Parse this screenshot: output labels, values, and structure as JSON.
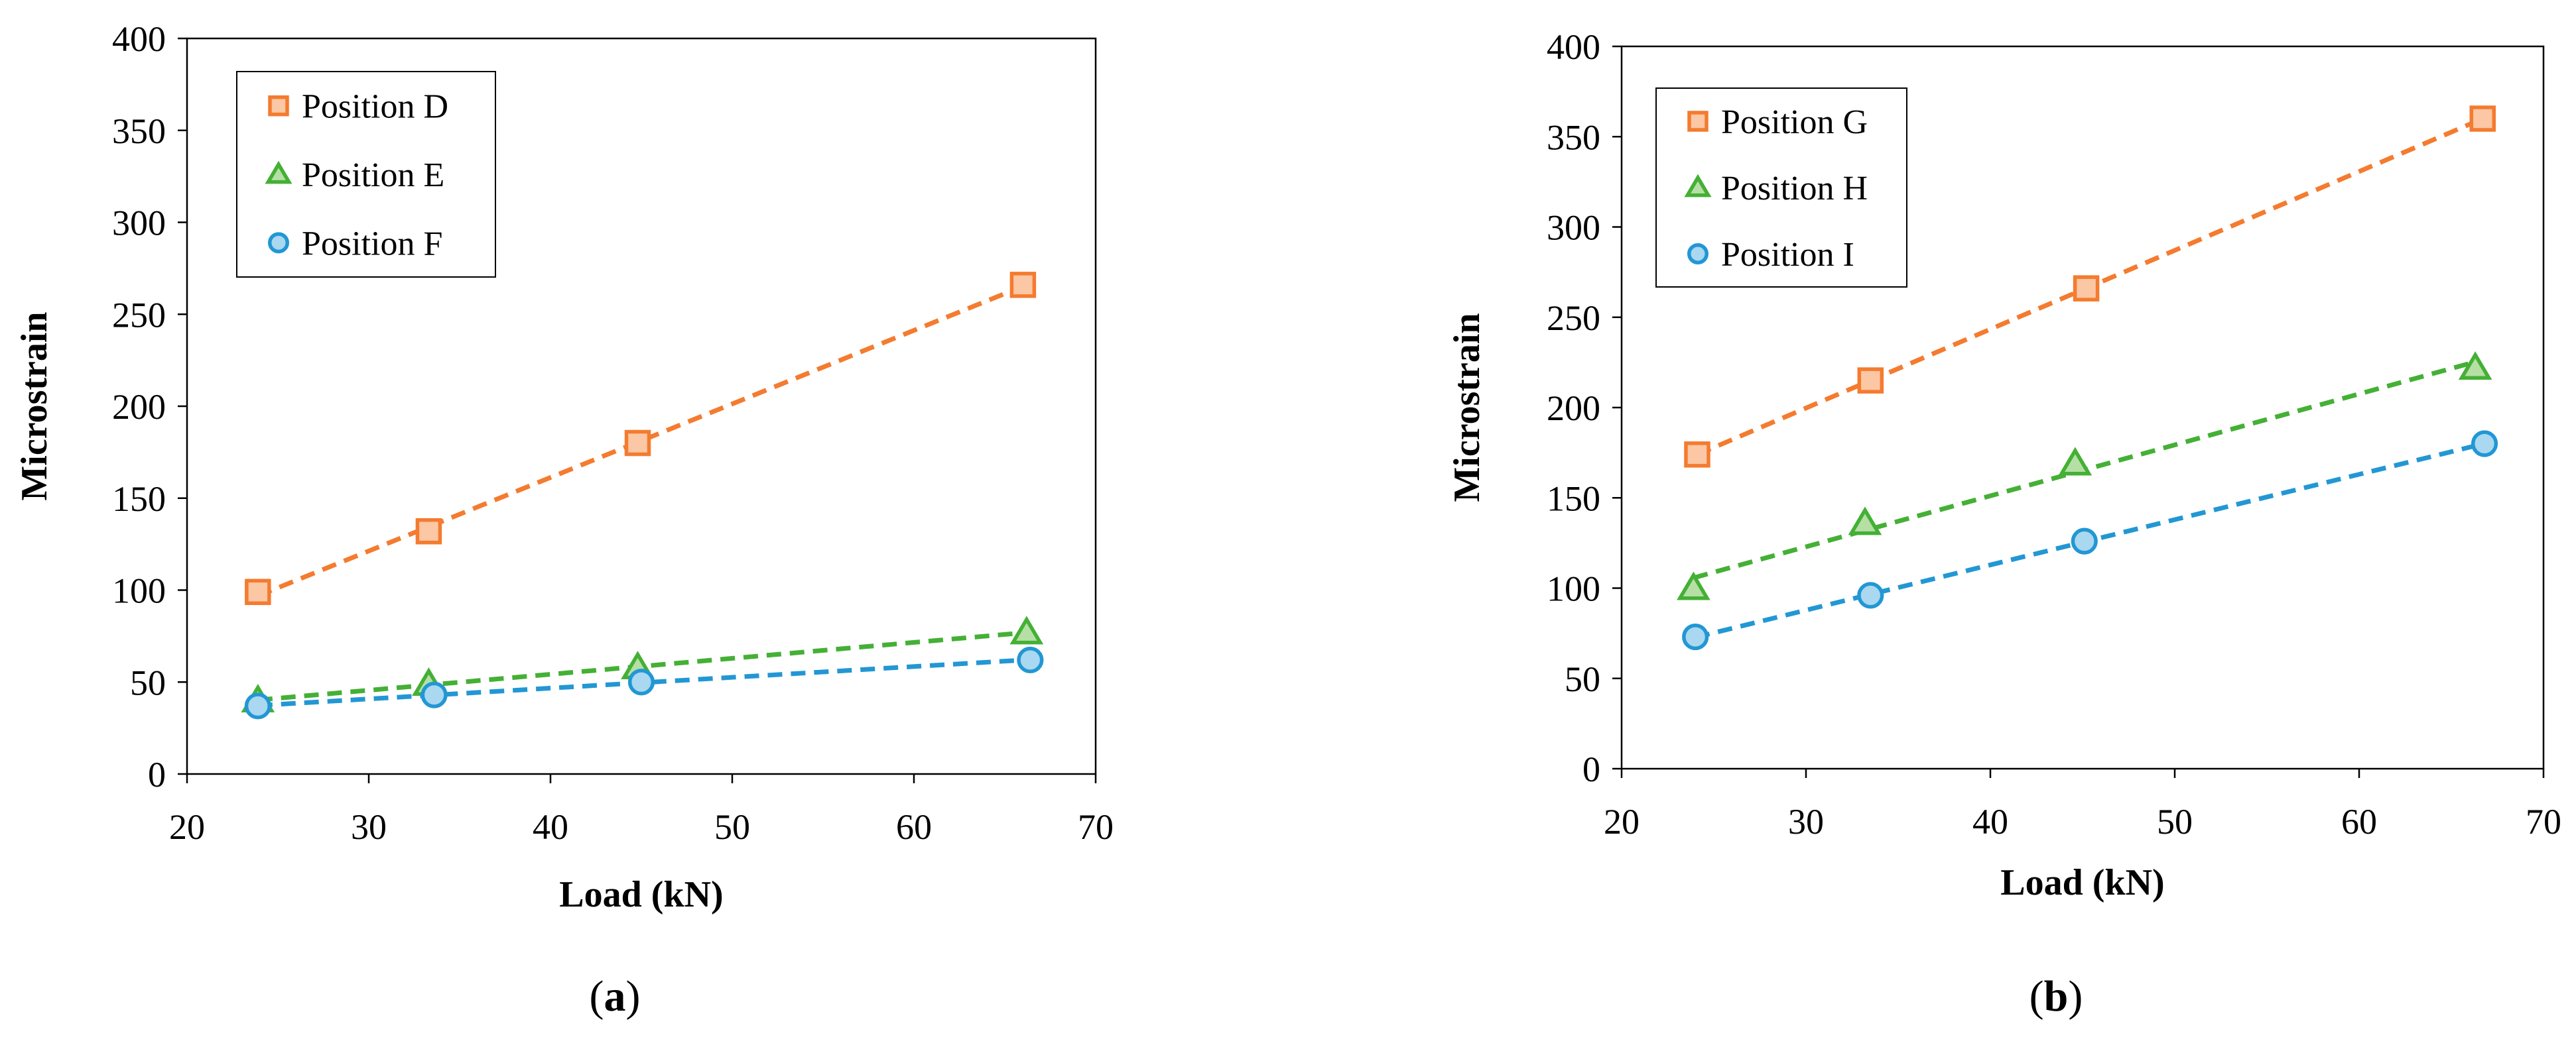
{
  "chart_data": [
    {
      "type": "scatter",
      "panel_label": "a",
      "xlabel": "Load (kN)",
      "ylabel": "Microstrain",
      "xlim": [
        20,
        70
      ],
      "ylim": [
        0,
        400
      ],
      "xticks": [
        20,
        30,
        40,
        50,
        60,
        70
      ],
      "yticks": [
        0,
        50,
        100,
        150,
        200,
        250,
        300,
        350,
        400
      ],
      "grid": false,
      "legend_position": "top-left",
      "trendlines": "linear dashed",
      "series": [
        {
          "name": "Position D",
          "marker": "square",
          "color": "#F47B2F",
          "fill": "#FBC7A4",
          "x": [
            23.9,
            33.3,
            44.8,
            66.0
          ],
          "y": [
            99,
            132,
            180,
            266
          ]
        },
        {
          "name": "Position E",
          "marker": "triangle",
          "color": "#44B035",
          "fill": "#B6DFA6",
          "x": [
            23.9,
            33.3,
            44.8,
            66.2
          ],
          "y": [
            40,
            49,
            58,
            77
          ]
        },
        {
          "name": "Position F",
          "marker": "circle",
          "color": "#2297D4",
          "fill": "#A9D8F0",
          "x": [
            23.9,
            33.6,
            45.0,
            66.4
          ],
          "y": [
            37,
            43,
            50,
            62
          ]
        }
      ]
    },
    {
      "type": "scatter",
      "panel_label": "b",
      "xlabel": "Load (kN)",
      "ylabel": "Microstrain",
      "xlim": [
        20,
        70
      ],
      "ylim": [
        0,
        400
      ],
      "xticks": [
        20,
        30,
        40,
        50,
        60,
        70
      ],
      "yticks": [
        0,
        50,
        100,
        150,
        200,
        250,
        300,
        350,
        400
      ],
      "grid": false,
      "legend_position": "top-left",
      "trendlines": "linear dashed",
      "series": [
        {
          "name": "Position G",
          "marker": "square",
          "color": "#F47B2F",
          "fill": "#FBC7A4",
          "x": [
            24.1,
            33.5,
            45.2,
            66.7
          ],
          "y": [
            174,
            215,
            266,
            360
          ]
        },
        {
          "name": "Position H",
          "marker": "triangle",
          "color": "#44B035",
          "fill": "#B6DFA6",
          "x": [
            23.9,
            33.2,
            44.6,
            66.3
          ],
          "y": [
            100,
            136,
            169,
            222
          ]
        },
        {
          "name": "Position I",
          "marker": "circle",
          "color": "#2297D4",
          "fill": "#A9D8F0",
          "x": [
            24.0,
            33.5,
            45.1,
            66.8
          ],
          "y": [
            73,
            96,
            126,
            180
          ]
        }
      ]
    }
  ]
}
